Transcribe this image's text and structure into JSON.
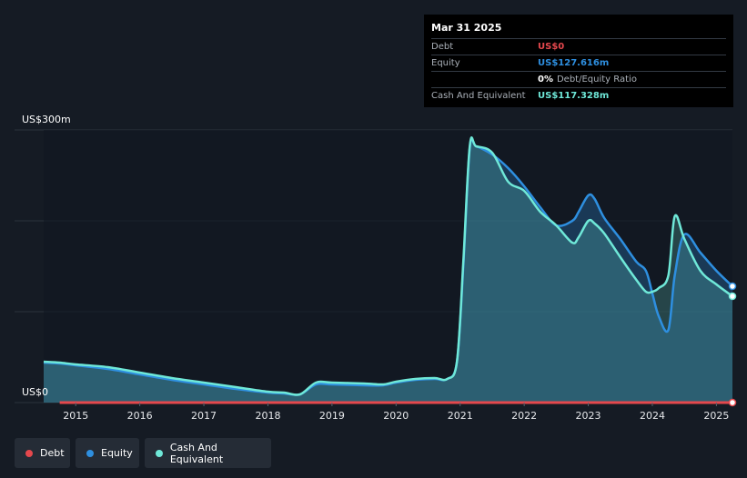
{
  "tooltip": {
    "date": "Mar 31 2025",
    "rows": [
      {
        "label": "Debt",
        "value": "US$0"
      },
      {
        "label": "Equity",
        "value": "US$127.616m"
      },
      {
        "label": "",
        "value": "0%",
        "sub": "Debt/Equity Ratio"
      },
      {
        "label": "Cash And Equivalent",
        "value": "US$117.328m"
      }
    ]
  },
  "legend": [
    {
      "name": "Debt",
      "color": "#e5484d"
    },
    {
      "name": "Equity",
      "color": "#2e8fe0"
    },
    {
      "name": "Cash And Equivalent",
      "color": "#6fe8d8"
    }
  ],
  "colors": {
    "background": "#151b24",
    "debt": "#e5484d",
    "equity": "#2e8fe0",
    "cash": "#6fe8d8",
    "grid": "#2c333d"
  },
  "chart_data": {
    "type": "area",
    "y_axis_labels": [
      "US$300m",
      "US$0"
    ],
    "ylim": [
      0,
      300
    ],
    "xlim": [
      2014.5,
      2025.25
    ],
    "x_ticks": [
      "2015",
      "2016",
      "2017",
      "2018",
      "2019",
      "2020",
      "2021",
      "2022",
      "2023",
      "2024",
      "2025"
    ],
    "grid": true,
    "series": [
      {
        "name": "Debt",
        "x": [
          2014.75,
          2025.25
        ],
        "y": [
          0,
          0
        ]
      },
      {
        "name": "Equity",
        "x": [
          2014.5,
          2014.75,
          2015.0,
          2015.5,
          2016.0,
          2016.5,
          2017.0,
          2017.5,
          2018.0,
          2018.25,
          2018.5,
          2018.75,
          2019.0,
          2019.5,
          2019.8,
          2020.0,
          2020.3,
          2020.6,
          2020.8,
          2020.95,
          2021.05,
          2021.15,
          2021.25,
          2021.5,
          2021.75,
          2022.0,
          2022.25,
          2022.5,
          2022.75,
          2022.85,
          2023.0,
          2023.1,
          2023.25,
          2023.5,
          2023.75,
          2023.9,
          2024.0,
          2024.1,
          2024.25,
          2024.35,
          2024.5,
          2024.75,
          2025.0,
          2025.25
        ],
        "y": [
          44,
          43,
          41,
          37,
          31,
          25,
          20,
          15,
          11,
          10,
          9,
          20,
          20,
          19,
          19,
          22,
          25,
          26,
          26,
          45,
          150,
          280,
          282,
          273,
          258,
          238,
          215,
          195,
          200,
          210,
          228,
          224,
          203,
          180,
          155,
          145,
          120,
          95,
          80,
          140,
          185,
          165,
          145,
          128
        ]
      },
      {
        "name": "Cash And Equivalent",
        "x": [
          2014.5,
          2014.75,
          2015.0,
          2015.5,
          2016.0,
          2016.5,
          2017.0,
          2017.5,
          2018.0,
          2018.25,
          2018.5,
          2018.75,
          2019.0,
          2019.5,
          2019.8,
          2020.0,
          2020.3,
          2020.6,
          2020.8,
          2020.95,
          2021.05,
          2021.15,
          2021.25,
          2021.5,
          2021.75,
          2022.0,
          2022.25,
          2022.5,
          2022.75,
          2022.85,
          2023.0,
          2023.1,
          2023.25,
          2023.5,
          2023.75,
          2023.9,
          2024.0,
          2024.1,
          2024.25,
          2024.35,
          2024.5,
          2024.75,
          2025.0,
          2025.25
        ],
        "y": [
          45,
          44,
          42,
          39,
          33,
          27,
          22,
          17,
          12,
          11,
          9,
          22,
          22,
          21,
          20,
          23,
          26,
          27,
          26,
          45,
          155,
          282,
          282,
          275,
          243,
          233,
          210,
          195,
          176,
          182,
          200,
          197,
          186,
          160,
          135,
          122,
          122,
          126,
          140,
          205,
          180,
          145,
          130,
          117
        ]
      }
    ]
  }
}
